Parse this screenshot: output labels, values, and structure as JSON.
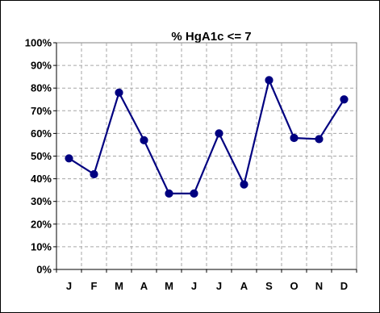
{
  "chart_data": {
    "type": "line",
    "title": "%  HgA1c <= 7",
    "xlabel": "",
    "ylabel": "",
    "categories": [
      "J",
      "F",
      "M",
      "A",
      "M",
      "J",
      "J",
      "A",
      "S",
      "O",
      "N",
      "D"
    ],
    "values": [
      49,
      42,
      78,
      57,
      33.5,
      33.5,
      60,
      37.5,
      83.5,
      58,
      57.5,
      75
    ],
    "ylim": [
      0,
      100
    ],
    "yticks": [
      "0%",
      "10%",
      "20%",
      "30%",
      "40%",
      "50%",
      "60%",
      "70%",
      "80%",
      "90%",
      "100%"
    ],
    "grid": true,
    "legend": "none",
    "line_color": "#000080",
    "marker_color": "#000080"
  }
}
